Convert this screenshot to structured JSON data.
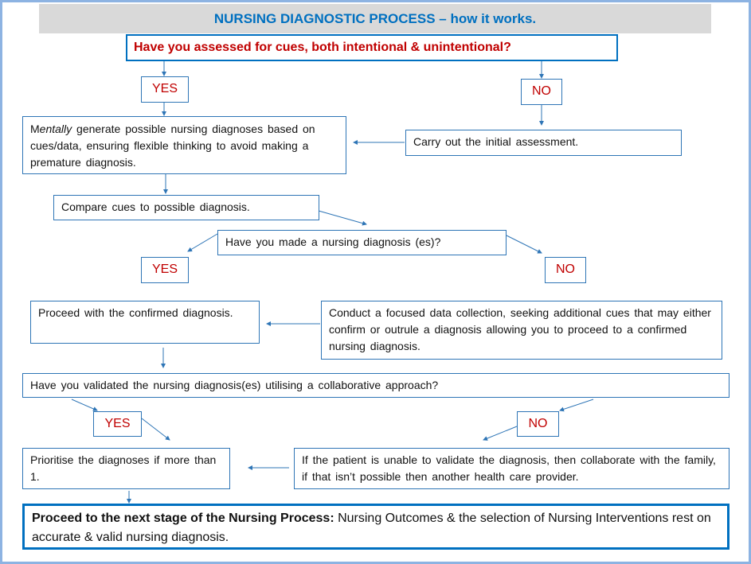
{
  "title": "NURSING DIAGNOSTIC PROCESS – how it works.",
  "q_assessed": "Have you assessed for cues, both intentional & unintentional?",
  "yes_label": "YES",
  "no_label": "NO",
  "mentally_em": "entally",
  "mentally_prefix": "M",
  "mentally_rest": " generate possible nursing diagnoses based on cues/data, ensuring flexible thinking to avoid making a premature diagnosis.",
  "carry_out": "Carry out the initial assessment.",
  "compare": "Compare cues to possible diagnosis.",
  "q_made": "Have you made a nursing diagnosis (es)?",
  "proceed_confirmed": "Proceed with the confirmed diagnosis.",
  "conduct": "Conduct a focused data collection, seeking additional cues that may either confirm or outrule a diagnosis allowing you to proceed to a confirmed nursing diagnosis.",
  "q_validated": "Have you validated the nursing diagnosis(es) utilising a collaborative approach?",
  "prioritise": "Prioritise the diagnoses if more than 1.",
  "if_patient": "If the patient is unable to validate the diagnosis, then collaborate with the family, if that isn’t possible then another health care provider.",
  "final_bold": "Proceed to the next stage of the Nursing Process:",
  "final_rest": " Nursing Outcomes & the selection of Nursing Interventions rest on accurate & valid nursing diagnosis.",
  "colors": {
    "accent": "#0070c0",
    "answer": "#c00000",
    "frame": "#8db3e2",
    "title_bg": "#d9d9d9"
  }
}
